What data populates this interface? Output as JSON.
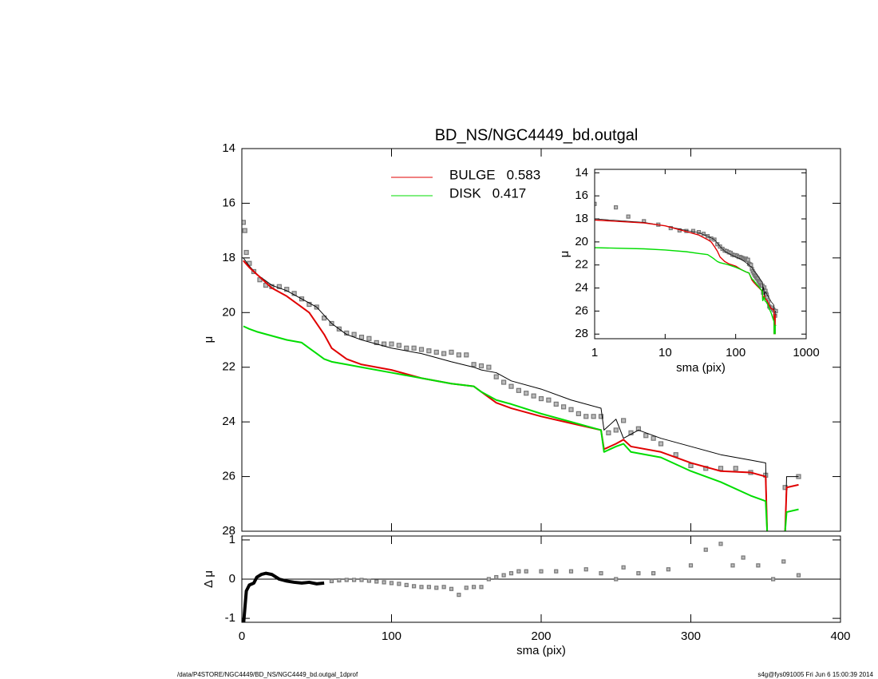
{
  "footer_left": "/data/P4STORE/NGC4449/BD_NS/NGC4449_bd.outgal_1dprof",
  "footer_right": "s4g@fys091005  Fri Jun  6 15:00:39 2014",
  "chart_data": [
    {
      "type": "line",
      "title": "BD_NS/NGC4449_bd.outgal",
      "ylabel": "μ",
      "xlim": [
        0,
        400
      ],
      "ylim": [
        14,
        28
      ],
      "y_reversed": true,
      "xticks": [
        0,
        100,
        200,
        300,
        400
      ],
      "yticks": [
        14,
        16,
        18,
        20,
        22,
        24,
        26,
        28
      ],
      "show_xtick_labels": false,
      "series": [
        {
          "color": "#777777",
          "marker": "square",
          "line": false,
          "x": [
            1,
            2,
            3,
            5,
            8,
            12,
            16,
            20,
            25,
            30,
            35,
            40,
            45,
            50,
            55,
            60,
            65,
            70,
            75,
            80,
            85,
            90,
            95,
            100,
            105,
            110,
            115,
            120,
            125,
            130,
            135,
            140,
            145,
            150,
            155,
            160,
            165,
            170,
            175,
            180,
            185,
            190,
            195,
            200,
            205,
            210,
            215,
            220,
            225,
            230,
            235,
            240,
            245,
            250,
            255,
            260,
            265,
            270,
            275,
            280,
            290,
            300,
            310,
            320,
            330,
            340,
            350,
            363,
            372
          ],
          "values": [
            16.7,
            17.0,
            17.8,
            18.2,
            18.5,
            18.8,
            19.0,
            19.05,
            19.05,
            19.15,
            19.3,
            19.5,
            19.7,
            19.8,
            20.2,
            20.4,
            20.6,
            20.75,
            20.8,
            20.9,
            20.95,
            21.1,
            21.15,
            21.15,
            21.2,
            21.3,
            21.3,
            21.35,
            21.4,
            21.45,
            21.5,
            21.45,
            21.55,
            21.55,
            21.9,
            21.95,
            22.0,
            22.35,
            22.55,
            22.7,
            22.85,
            22.95,
            23.05,
            23.15,
            23.2,
            23.35,
            23.45,
            23.55,
            23.7,
            23.8,
            23.8,
            23.8,
            24.4,
            24.3,
            23.95,
            24.4,
            24.25,
            24.5,
            24.6,
            24.8,
            25.2,
            25.6,
            25.7,
            25.7,
            25.7,
            25.85,
            25.95,
            26.4,
            26.0
          ]
        },
        {
          "color": "#000000",
          "line": true,
          "line_width": 1,
          "x": [
            1,
            5,
            10,
            20,
            30,
            40,
            50,
            55,
            60,
            70,
            80,
            100,
            120,
            140,
            155,
            160,
            170,
            180,
            200,
            220,
            240,
            242,
            250,
            255,
            265,
            280,
            300,
            320,
            340,
            350,
            351,
            357,
            363,
            364,
            372
          ],
          "values": [
            18.0,
            18.3,
            18.6,
            19.0,
            19.2,
            19.5,
            19.8,
            20.1,
            20.4,
            20.8,
            21.0,
            21.3,
            21.5,
            21.8,
            22.0,
            22.1,
            22.2,
            22.5,
            22.8,
            23.2,
            23.5,
            24.3,
            23.9,
            24.6,
            24.3,
            24.6,
            24.9,
            25.2,
            25.4,
            25.5,
            28,
            null,
            28,
            26.0,
            26.0
          ]
        },
        {
          "name": "BULGE",
          "fraction": 0.583,
          "color": "#e00000",
          "line": true,
          "line_width": 2,
          "x": [
            1,
            5,
            10,
            20,
            30,
            40,
            45,
            50,
            55,
            60,
            70,
            80,
            100,
            120,
            140,
            155,
            160,
            170,
            180,
            200,
            220,
            240,
            242,
            250,
            255,
            260,
            280,
            300,
            320,
            340,
            350,
            351,
            357,
            363,
            364,
            372
          ],
          "values": [
            18.1,
            18.35,
            18.6,
            19.1,
            19.4,
            19.8,
            20.0,
            20.4,
            20.8,
            21.3,
            21.7,
            21.9,
            22.1,
            22.4,
            22.6,
            22.7,
            22.9,
            23.3,
            23.5,
            23.8,
            24.05,
            24.3,
            25.0,
            24.8,
            24.65,
            24.9,
            25.1,
            25.5,
            25.8,
            25.85,
            26.0,
            28,
            null,
            28,
            26.4,
            26.3
          ]
        },
        {
          "name": "DISK",
          "fraction": 0.417,
          "color": "#00dd00",
          "line": true,
          "line_width": 2,
          "x": [
            1,
            5,
            10,
            20,
            30,
            40,
            45,
            50,
            55,
            60,
            70,
            80,
            100,
            120,
            140,
            155,
            160,
            170,
            180,
            200,
            220,
            240,
            242,
            250,
            255,
            260,
            280,
            300,
            320,
            340,
            350,
            351,
            357,
            363,
            364,
            372
          ],
          "values": [
            20.5,
            20.6,
            20.7,
            20.85,
            21.0,
            21.1,
            21.3,
            21.5,
            21.7,
            21.8,
            21.9,
            22.0,
            22.2,
            22.4,
            22.6,
            22.7,
            22.9,
            23.2,
            23.35,
            23.7,
            24.0,
            24.3,
            25.1,
            24.9,
            24.8,
            25.1,
            25.3,
            25.8,
            26.2,
            26.7,
            26.9,
            28,
            null,
            28,
            27.3,
            27.2
          ]
        }
      ]
    },
    {
      "type": "line",
      "ylabel": "Δ μ",
      "xlabel": "sma (pix)",
      "xlim": [
        0,
        400
      ],
      "ylim": [
        -1.1,
        1.1
      ],
      "xticks": [
        0,
        100,
        200,
        300,
        400
      ],
      "yticks": [
        -1,
        0,
        1
      ],
      "hline": 0,
      "series": [
        {
          "color": "#000000",
          "line": true,
          "line_width": 4,
          "x": [
            1,
            3,
            5,
            8,
            10,
            13,
            16,
            20,
            25,
            30,
            35,
            40,
            45,
            50,
            55
          ],
          "values": [
            -1.2,
            -0.3,
            -0.15,
            -0.1,
            0.05,
            0.12,
            0.15,
            0.12,
            0.0,
            -0.05,
            -0.08,
            -0.1,
            -0.08,
            -0.12,
            -0.1
          ]
        },
        {
          "color": "#777777",
          "marker": "square",
          "line": false,
          "x": [
            60,
            65,
            70,
            75,
            80,
            85,
            90,
            95,
            100,
            105,
            110,
            115,
            120,
            125,
            130,
            135,
            140,
            145,
            150,
            155,
            160,
            165,
            170,
            175,
            180,
            185,
            190,
            200,
            210,
            220,
            230,
            240,
            250,
            255,
            265,
            275,
            285,
            300,
            310,
            320,
            328,
            335,
            345,
            355,
            362,
            372
          ],
          "values": [
            -0.05,
            -0.03,
            -0.02,
            -0.02,
            -0.02,
            -0.04,
            -0.06,
            -0.08,
            -0.1,
            -0.12,
            -0.15,
            -0.18,
            -0.2,
            -0.2,
            -0.22,
            -0.2,
            -0.25,
            -0.4,
            -0.22,
            -0.2,
            -0.2,
            0.0,
            0.05,
            0.1,
            0.15,
            0.2,
            0.2,
            0.2,
            0.2,
            0.2,
            0.25,
            0.15,
            0.0,
            0.3,
            0.15,
            0.15,
            0.25,
            0.35,
            0.75,
            0.9,
            0.35,
            0.55,
            0.35,
            0.0,
            0.45,
            0.1
          ]
        }
      ]
    },
    {
      "type": "line",
      "ylabel": "μ",
      "xlabel": "sma (pix)",
      "xlog": true,
      "xlim": [
        1,
        1000
      ],
      "ylim": [
        13.7,
        28.4
      ],
      "y_reversed": true,
      "xticks": [
        1,
        10,
        100,
        1000
      ],
      "yticks": [
        14,
        16,
        18,
        20,
        22,
        24,
        26,
        28
      ]
    }
  ]
}
